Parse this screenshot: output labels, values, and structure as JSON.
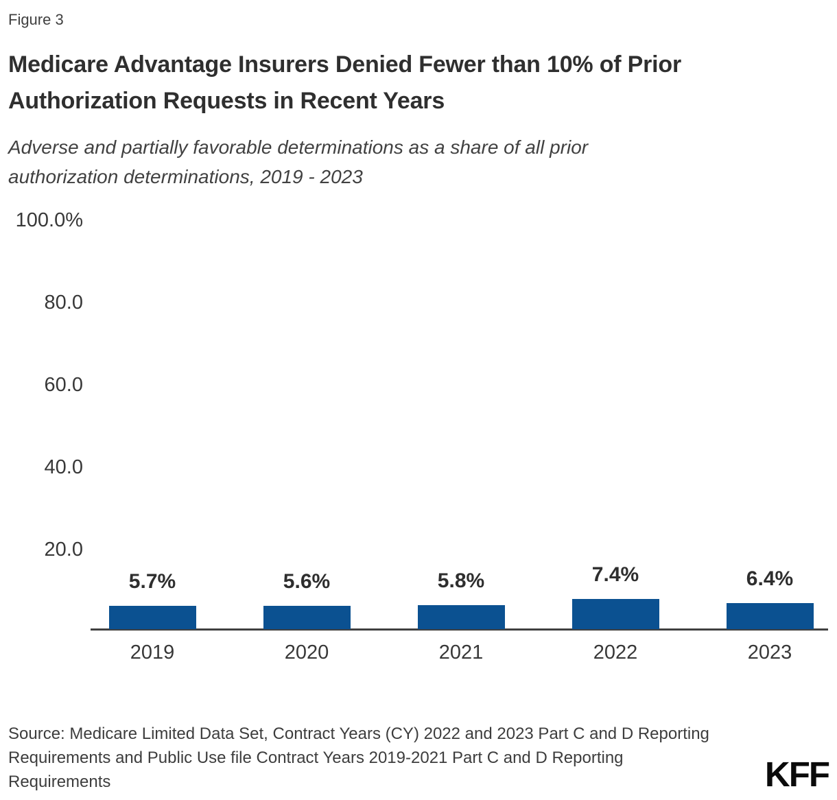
{
  "header": {
    "figure_label": "Figure 3",
    "title_lines": [
      "Medicare Advantage Insurers Denied Fewer than 10% of Prior",
      "Authorization Requests in Recent Years"
    ],
    "subtitle_lines": [
      "Adverse and partially favorable determinations as a share of all prior",
      "authorization determinations, 2019 - 2023"
    ]
  },
  "footer": {
    "source_lines": [
      "Source: Medicare Limited Data Set, Contract Years (CY) 2022 and 2023 Part C and D Reporting",
      "Requirements and Public Use file Contract Years 2019-2021 Part C and D Reporting",
      "Requirements"
    ],
    "logo_text": "KFF"
  },
  "colors": {
    "bar": "#0B5191",
    "axis": "#404040",
    "text": "#333333"
  },
  "chart_data": {
    "type": "bar",
    "title": "Medicare Advantage Insurers Denied Fewer than 10% of Prior Authorization Requests in Recent Years",
    "subtitle": "Adverse and partially favorable determinations as a share of all prior authorization determinations, 2019 - 2023",
    "categories": [
      "2019",
      "2020",
      "2021",
      "2022",
      "2023"
    ],
    "values": [
      5.7,
      5.6,
      5.8,
      7.4,
      6.4
    ],
    "value_labels": [
      "5.7%",
      "5.6%",
      "5.8%",
      "7.4%",
      "6.4%"
    ],
    "unit": "percent",
    "ylim": [
      0,
      100
    ],
    "y_ticks": [
      {
        "label": "100.0%",
        "value": 100
      },
      {
        "label": "80.0",
        "value": 80
      },
      {
        "label": "60.0",
        "value": 60
      },
      {
        "label": "40.0",
        "value": 40
      },
      {
        "label": "20.0",
        "value": 20
      }
    ],
    "grid": false,
    "legend": false
  }
}
